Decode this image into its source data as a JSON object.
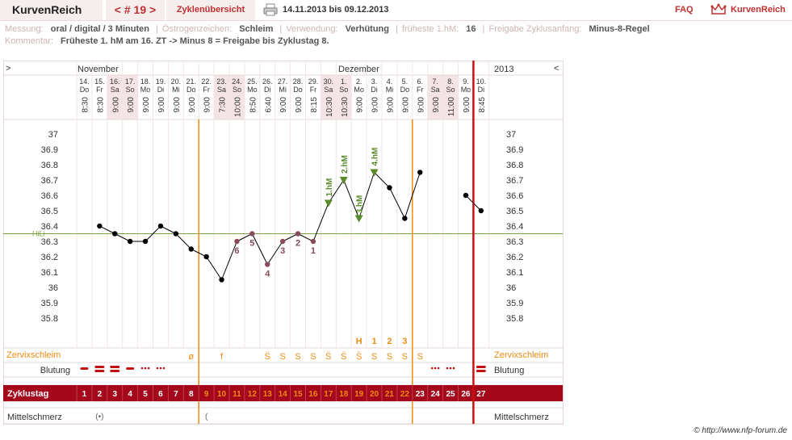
{
  "header": {
    "app_name": "KurvenReich",
    "cycle_nav": "< # 19 >",
    "overview": "Zyklenübersicht",
    "date_range": "14.11.2013 bis 09.12.2013",
    "faq": "FAQ",
    "logo_text": "KurvenReich"
  },
  "info": {
    "messung_label": "Messung:",
    "messung_value": "oral / digital / 3 Minuten",
    "oestrogen_label": "Östrogenzeichen:",
    "oestrogen_value": "Schleim",
    "verwendung_label": "Verwendung:",
    "verwendung_value": "Verhütung",
    "hm_label": "früheste 1.hM:",
    "hm_value": "16",
    "freigabe_label": "Freigabe Zyklusanfang:",
    "freigabe_value": "Minus-8-Regel",
    "kommentar_label": "Kommentar:",
    "kommentar_value": "Früheste 1. hM am 16. ZT -> Minus 8 = Freigabe bis Zyklustag 8."
  },
  "chart_header": {
    "nav_left": ">",
    "nav_right": "<",
    "month_nov": "November",
    "month_dec": "Dezember",
    "year": "2013"
  },
  "days": [
    {
      "d": "14.",
      "wd": "Do",
      "t": "8:30",
      "we": false
    },
    {
      "d": "15.",
      "wd": "Fr",
      "t": "8:30",
      "we": false
    },
    {
      "d": "16.",
      "wd": "Sa",
      "t": "9:00",
      "we": true
    },
    {
      "d": "17.",
      "wd": "So",
      "t": "9:00",
      "we": true
    },
    {
      "d": "18.",
      "wd": "Mo",
      "t": "9:00",
      "we": false
    },
    {
      "d": "19.",
      "wd": "Di",
      "t": "9:00",
      "we": false
    },
    {
      "d": "20.",
      "wd": "Mi",
      "t": "9:00",
      "we": false
    },
    {
      "d": "21.",
      "wd": "Do",
      "t": "9:00",
      "we": false
    },
    {
      "d": "22.",
      "wd": "Fr",
      "t": "9:00",
      "we": false
    },
    {
      "d": "23.",
      "wd": "Sa",
      "t": "7:30",
      "we": true
    },
    {
      "d": "24.",
      "wd": "So",
      "t": "10:00",
      "we": true
    },
    {
      "d": "25.",
      "wd": "Mo",
      "t": "8:50",
      "we": false
    },
    {
      "d": "26.",
      "wd": "Di",
      "t": "6:40",
      "we": false
    },
    {
      "d": "27.",
      "wd": "Mi",
      "t": "9:00",
      "we": false
    },
    {
      "d": "28.",
      "wd": "Do",
      "t": "9:00",
      "we": false
    },
    {
      "d": "29.",
      "wd": "Fr",
      "t": "8:15",
      "we": false
    },
    {
      "d": "30.",
      "wd": "Sa",
      "t": "10:30",
      "we": true
    },
    {
      "d": "1.",
      "wd": "So",
      "t": "10:30",
      "we": true
    },
    {
      "d": "2.",
      "wd": "Mo",
      "t": "9:00",
      "we": false
    },
    {
      "d": "3.",
      "wd": "Di",
      "t": "9:00",
      "we": false
    },
    {
      "d": "4.",
      "wd": "Mi",
      "t": "9:00",
      "we": false
    },
    {
      "d": "5.",
      "wd": "Do",
      "t": "9:00",
      "we": false
    },
    {
      "d": "6.",
      "wd": "Fr",
      "t": "9:00",
      "we": false
    },
    {
      "d": "7.",
      "wd": "Sa",
      "t": "9:00",
      "we": true
    },
    {
      "d": "8.",
      "wd": "So",
      "t": "11:00",
      "we": true
    },
    {
      "d": "9.",
      "wd": "Mo",
      "t": "9:00",
      "we": false
    },
    {
      "d": "10.",
      "wd": "Di",
      "t": "8:45",
      "we": false
    }
  ],
  "y_ticks": [
    "37",
    "36.9",
    "36.8",
    "36.7",
    "36.6",
    "36.5",
    "36.4",
    "36.3",
    "36.2",
    "36.1",
    "36",
    "35.9",
    "35.8"
  ],
  "hili_label": "HiLi",
  "chart_data": {
    "type": "line",
    "x": [
      1,
      2,
      3,
      4,
      5,
      6,
      7,
      8,
      9,
      10,
      11,
      12,
      13,
      14,
      15,
      16,
      17,
      18,
      19,
      20,
      21,
      22,
      23,
      24,
      25,
      26,
      27
    ],
    "temperature": [
      null,
      36.4,
      36.35,
      36.3,
      36.3,
      36.4,
      36.35,
      36.25,
      36.2,
      36.05,
      36.3,
      36.35,
      36.15,
      36.3,
      36.35,
      36.3,
      36.55,
      36.7,
      36.45,
      36.75,
      36.65,
      36.45,
      36.75,
      null,
      null,
      36.6,
      36.5
    ],
    "ylim": [
      35.7,
      37.05
    ],
    "hili": 36.35,
    "low_count_labels": [
      {
        "day": 11,
        "text": "6"
      },
      {
        "day": 12,
        "text": "5"
      },
      {
        "day": 13,
        "text": "4"
      },
      {
        "day": 14,
        "text": "3"
      },
      {
        "day": 15,
        "text": "2"
      },
      {
        "day": 16,
        "text": "1"
      }
    ],
    "high_markers": [
      {
        "day": 17,
        "text": "1.hM"
      },
      {
        "day": 18,
        "text": "2.hM"
      },
      {
        "day": 19,
        "text": "3.hM"
      },
      {
        "day": 20,
        "text": "4.hM"
      }
    ],
    "cycle_start_line_day": 9,
    "evaluation_line_day": 22,
    "end_line_day": 27
  },
  "mucus_top_marks": [
    {
      "day": 19,
      "text": "H"
    },
    {
      "day": 20,
      "text": "1"
    },
    {
      "day": 21,
      "text": "2"
    },
    {
      "day": 22,
      "text": "3"
    }
  ],
  "rows": {
    "mucus_label": "Zervixschleim",
    "bleeding_label": "Blutung",
    "cycle_label": "Zyklustag",
    "midpain_label": "Mittelschmerz"
  },
  "mucus_marks": [
    {
      "day": 8,
      "text": "ø"
    },
    {
      "day": 10,
      "text": "f"
    },
    {
      "day": 13,
      "text": "S̈"
    },
    {
      "day": 14,
      "text": "S"
    },
    {
      "day": 15,
      "text": "S"
    },
    {
      "day": 16,
      "text": "S"
    },
    {
      "day": 17,
      "text": "S̈"
    },
    {
      "day": 18,
      "text": "S̈"
    },
    {
      "day": 19,
      "text": "S̈"
    },
    {
      "day": 20,
      "text": "S"
    },
    {
      "day": 21,
      "text": "S"
    },
    {
      "day": 22,
      "text": "S"
    },
    {
      "day": 23,
      "text": "S"
    }
  ],
  "bleeding": [
    {
      "day": 1,
      "type": "dash"
    },
    {
      "day": 2,
      "type": "double"
    },
    {
      "day": 3,
      "type": "double"
    },
    {
      "day": 4,
      "type": "dash"
    },
    {
      "day": 5,
      "type": "dots"
    },
    {
      "day": 6,
      "type": "dots"
    },
    {
      "day": 24,
      "type": "dots"
    },
    {
      "day": 25,
      "type": "dots"
    },
    {
      "day": 27,
      "type": "double"
    }
  ],
  "cycle_days": [
    "1",
    "2",
    "3",
    "4",
    "5",
    "6",
    "7",
    "8",
    "9",
    "10",
    "11",
    "12",
    "13",
    "14",
    "15",
    "16",
    "17",
    "18",
    "19",
    "20",
    "21",
    "22",
    "23",
    "24",
    "25",
    "26",
    "27"
  ],
  "midpain": [
    {
      "day": 2,
      "text": "(•)"
    },
    {
      "day": 9,
      "text": "("
    }
  ],
  "copyright": "© http://www.nfp-forum.de",
  "colors": {
    "accent": "#c03030",
    "cycle_bar": "#a5071b",
    "orange": "#f08a10",
    "high_green": "#5a8a2a",
    "hili": "#7aa040",
    "low_count": "#8b4a5a"
  }
}
